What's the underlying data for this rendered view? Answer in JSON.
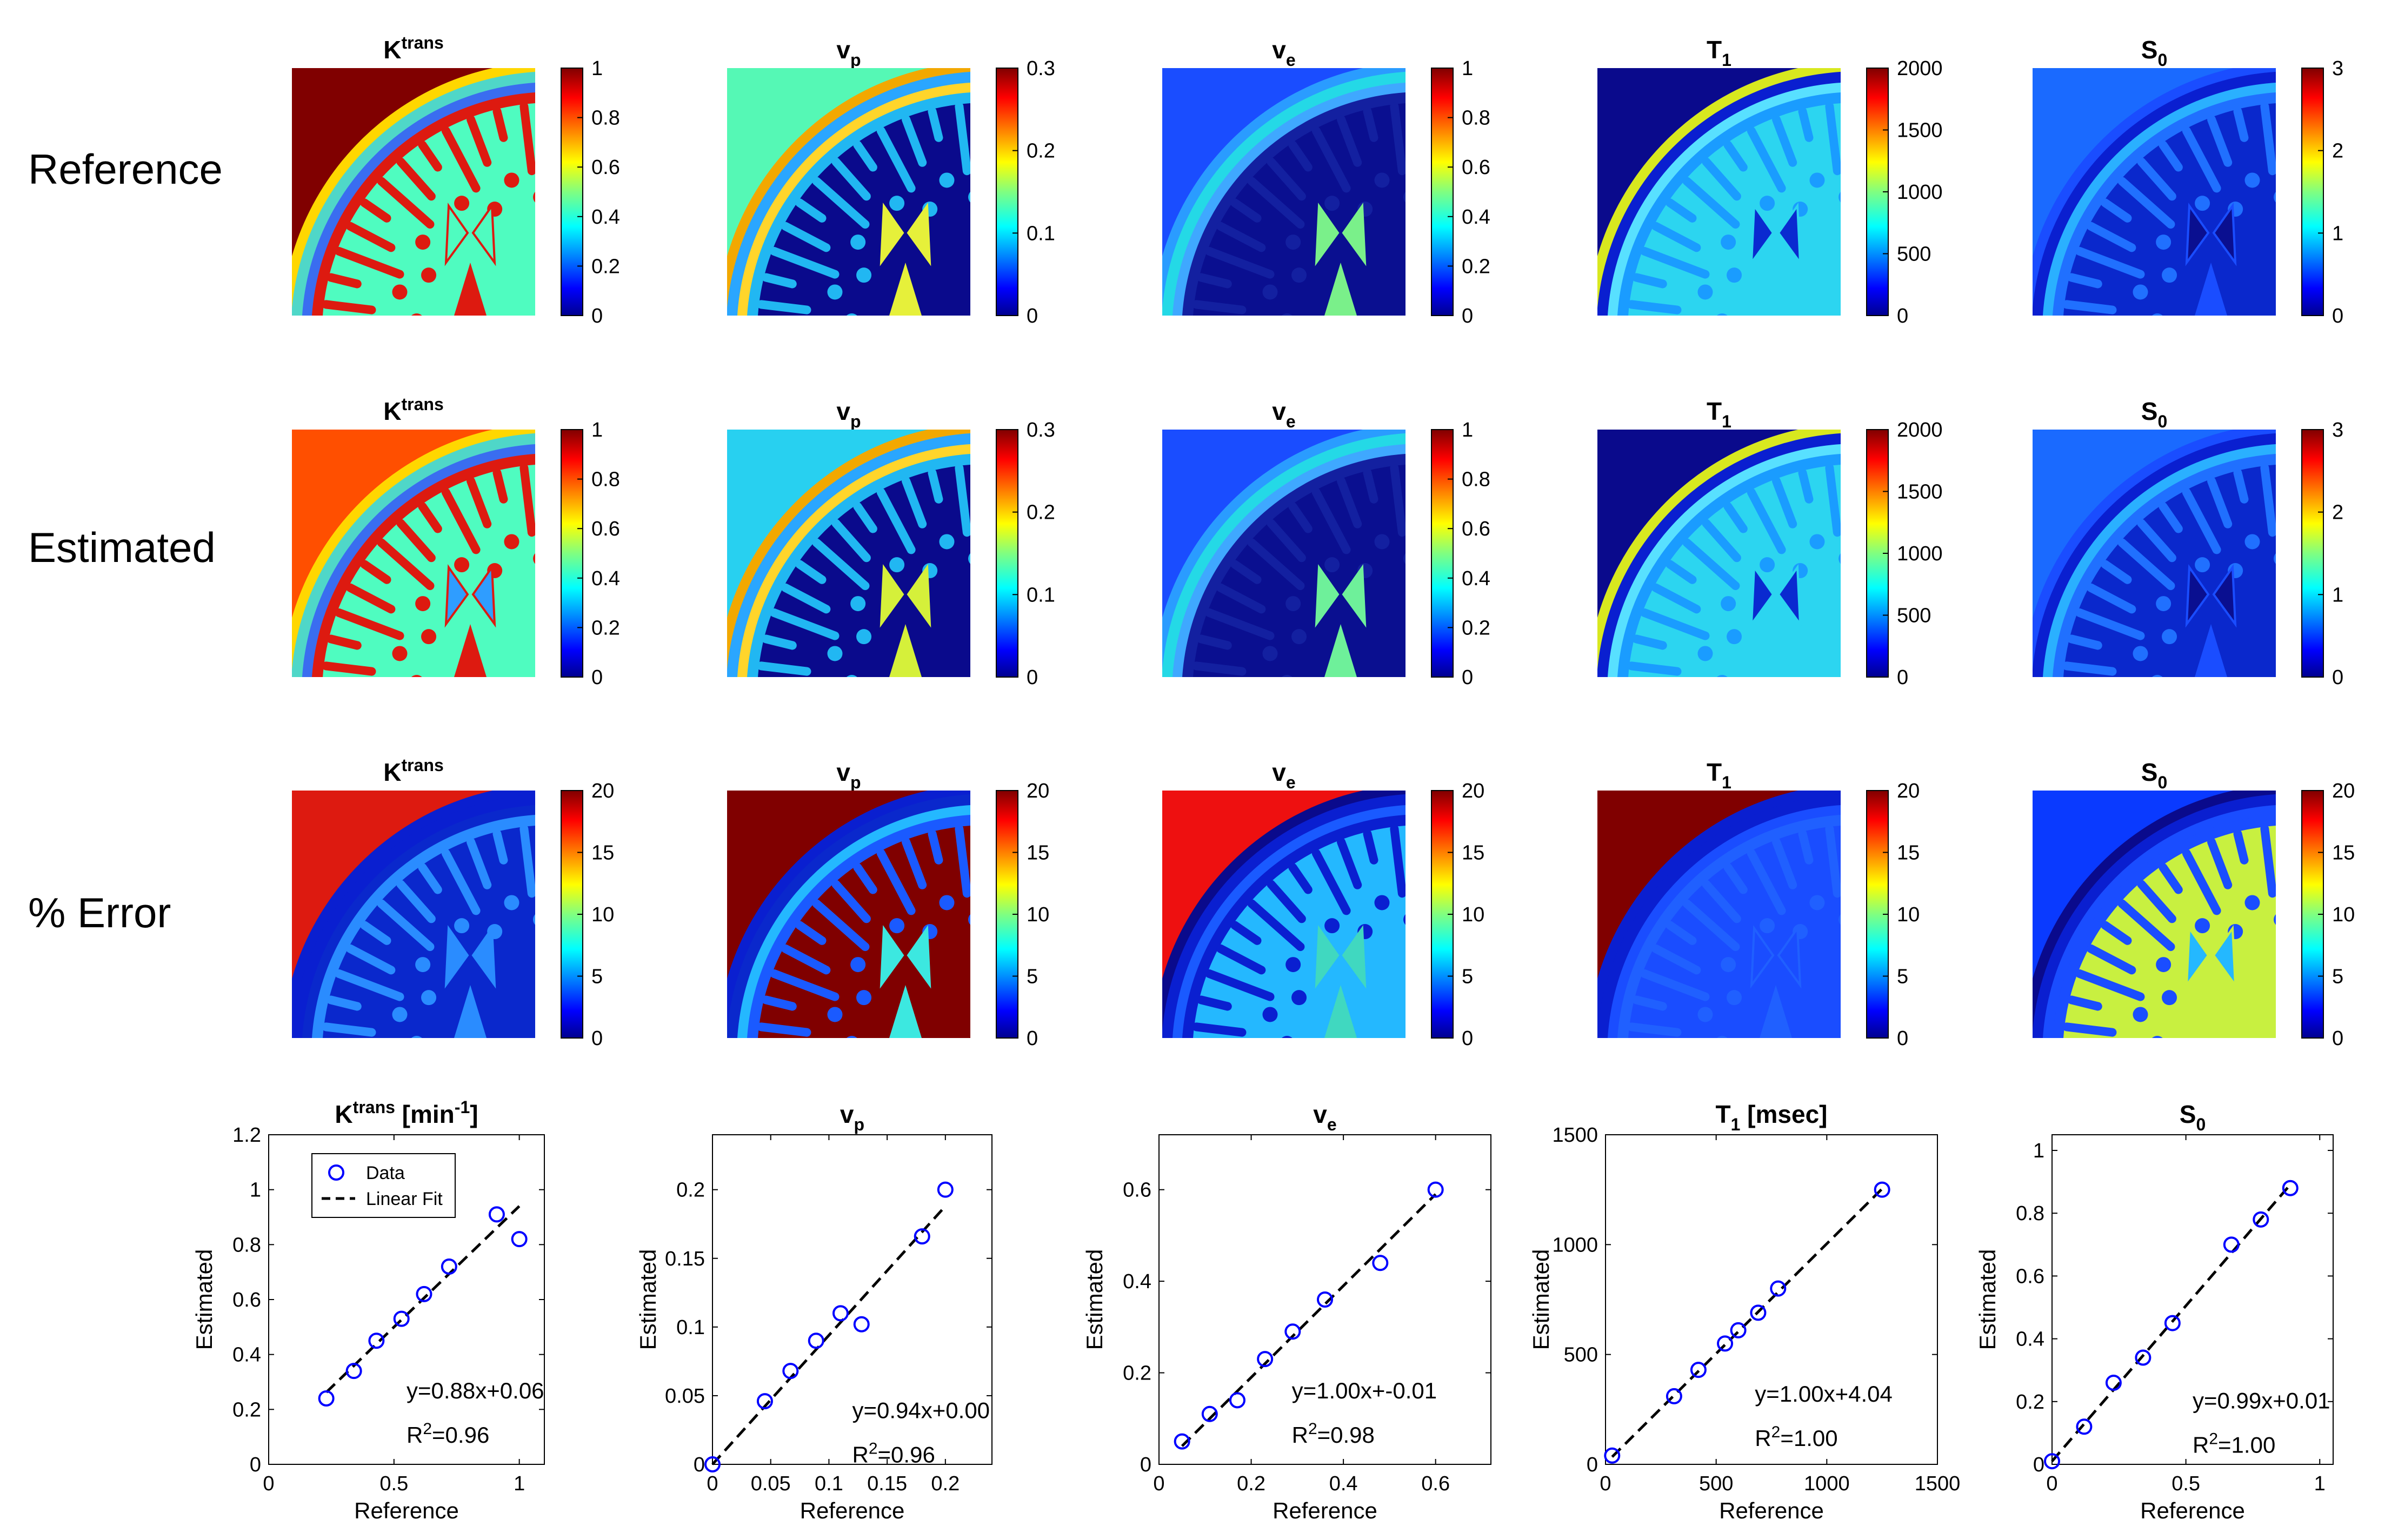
{
  "row_labels": [
    "Reference",
    "Estimated",
    "% Error"
  ],
  "columns": [
    {
      "key": "ktrans",
      "base": "K",
      "sup": "trans",
      "sub": ""
    },
    {
      "key": "vp",
      "base": "v",
      "sup": "",
      "sub": "p"
    },
    {
      "key": "ve",
      "base": "v",
      "sup": "",
      "sub": "e"
    },
    {
      "key": "t1",
      "base": "T",
      "sup": "",
      "sub": "1"
    },
    {
      "key": "s0",
      "base": "S",
      "sup": "",
      "sub": "0"
    }
  ],
  "colorbars": {
    "reference": [
      [
        "0",
        "0.2",
        "0.4",
        "0.6",
        "0.8",
        "1"
      ],
      [
        "0",
        "0.1",
        "0.2",
        "0.3"
      ],
      [
        "0",
        "0.2",
        "0.4",
        "0.6",
        "0.8",
        "1"
      ],
      [
        "0",
        "500",
        "1000",
        "1500",
        "2000"
      ],
      [
        "0",
        "1",
        "2",
        "3"
      ]
    ],
    "estimated": [
      [
        "0",
        "0.2",
        "0.4",
        "0.6",
        "0.8",
        "1"
      ],
      [
        "0",
        "0.1",
        "0.2",
        "0.3"
      ],
      [
        "0",
        "0.2",
        "0.4",
        "0.6",
        "0.8",
        "1"
      ],
      [
        "0",
        "500",
        "1000",
        "1500",
        "2000"
      ],
      [
        "0",
        "1",
        "2",
        "3"
      ]
    ],
    "error": [
      [
        "0",
        "5",
        "10",
        "15",
        "20"
      ],
      [
        "0",
        "5",
        "10",
        "15",
        "20"
      ],
      [
        "0",
        "5",
        "10",
        "15",
        "20"
      ],
      [
        "0",
        "5",
        "10",
        "15",
        "20"
      ],
      [
        "0",
        "5",
        "10",
        "15",
        "20"
      ]
    ]
  },
  "colors": {
    "marker": "#0000ff",
    "fit_line": "#000000",
    "jet_dark_red": "#800000",
    "jet_dark_blue": "#00008f"
  },
  "image_maps": {
    "reference": [
      {
        "bg": "#800000",
        "skull": "#ffd700",
        "skin": "#4fd7c8",
        "csf": "#3a6df0",
        "gm": "#dd1a10",
        "wm": "#4ffcc0",
        "vent": "#4ffcc0",
        "midline": "#dd1a10"
      },
      {
        "bg": "#55f8b5",
        "skull": "#f2a800",
        "skin": "#2aa6ff",
        "csf": "#ffd52b",
        "gm": "#21b7f2",
        "wm": "#0a0a8c",
        "vent": "#e6f03a",
        "midline": "#e6f03a"
      },
      {
        "bg": "#1a4dff",
        "skull": "#2a9cff",
        "skin": "#24d9e6",
        "csf": "#3fa8ff",
        "gm": "#1320a0",
        "wm": "#0a0f90",
        "vent": "#7af08a",
        "midline": "#7af08a"
      },
      {
        "bg": "#0a0a8c",
        "skull": "#d8e81f",
        "skin": "#0a1fd0",
        "csf": "#58e0ff",
        "gm": "#1a9cff",
        "wm": "#2cd5f0",
        "vent": "#0a2ad0",
        "midline": "#2cd5f0"
      },
      {
        "bg": "#1a6aff",
        "skull": "#1a4dff",
        "skin": "#0a1fd0",
        "csf": "#2ab0ff",
        "gm": "#2070ff",
        "wm": "#0a28cc",
        "vent": "#0a0f90",
        "midline": "#1a4dff"
      }
    ],
    "estimated": [
      {
        "bg": "#ff4f00",
        "skull": "#ffd700",
        "skin": "#4fd7c8",
        "csf": "#3a6df0",
        "gm": "#dd1a10",
        "wm": "#4ffcc0",
        "vent": "#2f9dff",
        "midline": "#dd1a10"
      },
      {
        "bg": "#28d0f0",
        "skull": "#f2a800",
        "skin": "#2aa6ff",
        "csf": "#ffd52b",
        "gm": "#21b7f2",
        "wm": "#0a0a8c",
        "vent": "#d5f03a",
        "midline": "#d5f03a"
      },
      {
        "bg": "#1a4dff",
        "skull": "#2a9cff",
        "skin": "#24d9e6",
        "csf": "#3fa8ff",
        "gm": "#1320a0",
        "wm": "#0a0f90",
        "vent": "#6ef09a",
        "midline": "#6ef09a"
      },
      {
        "bg": "#0a0a8c",
        "skull": "#d8e81f",
        "skin": "#0a1fd0",
        "csf": "#58e0ff",
        "gm": "#1a9cff",
        "wm": "#2cd5f0",
        "vent": "#0a2ad0",
        "midline": "#2cd5f0"
      },
      {
        "bg": "#1a6aff",
        "skull": "#1a4dff",
        "skin": "#0a1fd0",
        "csf": "#2ab0ff",
        "gm": "#2070ff",
        "wm": "#0a28cc",
        "vent": "#0a0f90",
        "midline": "#1a4dff"
      }
    ],
    "error": [
      {
        "bg": "#dd1a10",
        "skull": "#0a1fd0",
        "skin": "#0a1fd0",
        "csf": "#0a28cc",
        "gm": "#2a8cff",
        "wm": "#0a28cc",
        "vent": "#2a8cff",
        "midline": "#2a8cff"
      },
      {
        "bg": "#800000",
        "skull": "#0a1fd0",
        "skin": "#0a28cc",
        "csf": "#24b8ff",
        "gm": "#1a5aff",
        "wm": "#800000",
        "vent": "#3ce8e0",
        "midline": "#3ce8e0"
      },
      {
        "bg": "#ee1010",
        "skull": "#0a0a8c",
        "skin": "#0a1fd0",
        "csf": "#1a5aff",
        "gm": "#0a1fd0",
        "wm": "#24b8ff",
        "vent": "#40d8c0",
        "midline": "#40d8c0"
      },
      {
        "bg": "#800000",
        "skull": "#0a1fd0",
        "skin": "#0a1fd0",
        "csf": "#1a4dff",
        "gm": "#2060ff",
        "wm": "#1a4dff",
        "vent": "#1a4dff",
        "midline": "#2060ff"
      },
      {
        "bg": "#0a3aff",
        "skull": "#0a0a8c",
        "skin": "#0a1fd0",
        "csf": "#1a4dff",
        "gm": "#1a4dff",
        "wm": "#c8f040",
        "vent": "#24b8ff",
        "midline": "#c8f040"
      }
    ]
  },
  "chart_data": [
    {
      "type": "scatter",
      "title": "Ktrans [min-1]",
      "title_base": "K",
      "title_sup": "trans",
      "title_suffix": " [min",
      "title_suffix_sup": "-1",
      "title_end": "]",
      "xlabel": "Reference",
      "ylabel": "Estimated",
      "xlim": [
        0,
        1.1
      ],
      "ylim": [
        0,
        1.2
      ],
      "xticks": [
        0,
        0.5,
        1
      ],
      "xtick_labels": [
        "0",
        "0.5",
        "1"
      ],
      "yticks": [
        0,
        0.2,
        0.4,
        0.6,
        0.8,
        1,
        1.2
      ],
      "ytick_labels": [
        "0",
        "0.2",
        "0.4",
        "0.6",
        "0.8",
        "1",
        "1.2"
      ],
      "series": [
        {
          "name": "Data",
          "x": [
            0.23,
            0.34,
            0.43,
            0.53,
            0.62,
            0.72,
            0.91,
            1.0
          ],
          "y": [
            0.24,
            0.34,
            0.45,
            0.53,
            0.62,
            0.72,
            0.91,
            0.82
          ]
        },
        {
          "name": "Linear Fit",
          "slope": 0.88,
          "intercept": 0.06,
          "x_range": [
            0.23,
            1.0
          ]
        }
      ],
      "legend": {
        "entries": [
          "Data",
          "Linear Fit"
        ],
        "location": "top-left"
      },
      "annotations": [
        "y=0.88x+0.06",
        "R^2=0.96"
      ],
      "eq_text": "y=0.88x+0.06",
      "r2_value": "=0.96"
    },
    {
      "type": "scatter",
      "title": "vp",
      "title_base": "v",
      "title_sub": "p",
      "xlabel": "Reference",
      "ylabel": "Estimated",
      "xlim": [
        0,
        0.24
      ],
      "ylim": [
        0,
        0.24
      ],
      "xticks": [
        0,
        0.05,
        0.1,
        0.15,
        0.2
      ],
      "xtick_labels": [
        "0",
        "0.05",
        "0.1",
        "0.15",
        "0.2"
      ],
      "yticks": [
        0,
        0.05,
        0.1,
        0.15,
        0.2
      ],
      "ytick_labels": [
        "0",
        "0.05",
        "0.1",
        "0.15",
        "0.2"
      ],
      "series": [
        {
          "name": "Data",
          "x": [
            0.0,
            0.045,
            0.067,
            0.089,
            0.11,
            0.128,
            0.18,
            0.2
          ],
          "y": [
            0.0,
            0.046,
            0.068,
            0.09,
            0.11,
            0.102,
            0.166,
            0.2
          ]
        },
        {
          "name": "Linear Fit",
          "slope": 0.94,
          "intercept": 0.0,
          "x_range": [
            0.0,
            0.2
          ]
        }
      ],
      "annotations": [
        "y=0.94x+0.00",
        "R^2=0.96"
      ],
      "eq_text": "y=0.94x+0.00",
      "r2_value": "=0.96"
    },
    {
      "type": "scatter",
      "title": "ve",
      "title_base": "v",
      "title_sub": "e",
      "xlabel": "Reference",
      "ylabel": "Estimated",
      "xlim": [
        0,
        0.72
      ],
      "ylim": [
        0,
        0.72
      ],
      "xticks": [
        0,
        0.2,
        0.4,
        0.6
      ],
      "xtick_labels": [
        "0",
        "0.2",
        "0.4",
        "0.6"
      ],
      "yticks": [
        0,
        0.2,
        0.4,
        0.6
      ],
      "ytick_labels": [
        "0",
        "0.2",
        "0.4",
        "0.6"
      ],
      "series": [
        {
          "name": "Data",
          "x": [
            0.05,
            0.11,
            0.17,
            0.23,
            0.29,
            0.36,
            0.48,
            0.6
          ],
          "y": [
            0.05,
            0.11,
            0.14,
            0.23,
            0.29,
            0.36,
            0.44,
            0.6
          ]
        },
        {
          "name": "Linear Fit",
          "slope": 1.0,
          "intercept": -0.01,
          "x_range": [
            0.05,
            0.6
          ]
        }
      ],
      "annotations": [
        "y=1.00x+-0.01",
        "R^2=0.98"
      ],
      "eq_text": "y=1.00x+-0.01",
      "r2_value": "=0.98"
    },
    {
      "type": "scatter",
      "title": "T1 [msec]",
      "title_base": "T",
      "title_sub": "1",
      "title_suffix": " [msec]",
      "xlabel": "Reference",
      "ylabel": "Estimated",
      "xlim": [
        0,
        1500
      ],
      "ylim": [
        0,
        1500
      ],
      "xticks": [
        0,
        500,
        1000,
        1500
      ],
      "xtick_labels": [
        "0",
        "500",
        "1000",
        "1500"
      ],
      "yticks": [
        0,
        500,
        1000,
        1500
      ],
      "ytick_labels": [
        "0",
        "500",
        "1000",
        "1500"
      ],
      "series": [
        {
          "name": "Data",
          "x": [
            30,
            310,
            420,
            540,
            600,
            690,
            780,
            1250
          ],
          "y": [
            40,
            310,
            430,
            550,
            610,
            690,
            800,
            1250
          ]
        },
        {
          "name": "Linear Fit",
          "slope": 1.0,
          "intercept": 4.04,
          "x_range": [
            30,
            1250
          ]
        }
      ],
      "annotations": [
        "y=1.00x+4.04",
        "R^2=1.00"
      ],
      "eq_text": "y=1.00x+4.04",
      "r2_value": "=1.00"
    },
    {
      "type": "scatter",
      "title": "S0",
      "title_base": "S",
      "title_sub": "0",
      "xlabel": "Reference",
      "ylabel": "Estimated",
      "xlim": [
        0,
        1.05
      ],
      "ylim": [
        0,
        1.05
      ],
      "xticks": [
        0,
        0.5,
        1
      ],
      "xtick_labels": [
        "0",
        "0.5",
        "1"
      ],
      "yticks": [
        0,
        0.2,
        0.4,
        0.6,
        0.8,
        1
      ],
      "ytick_labels": [
        "0",
        "0.2",
        "0.4",
        "0.6",
        "0.8",
        "1"
      ],
      "series": [
        {
          "name": "Data",
          "x": [
            0.0,
            0.12,
            0.23,
            0.34,
            0.45,
            0.67,
            0.78,
            0.89
          ],
          "y": [
            0.01,
            0.12,
            0.26,
            0.34,
            0.45,
            0.7,
            0.78,
            0.88
          ]
        },
        {
          "name": "Linear Fit",
          "slope": 0.99,
          "intercept": 0.01,
          "x_range": [
            0.0,
            0.89
          ]
        }
      ],
      "annotations": [
        "y=0.99x+0.01",
        "R^2=1.00"
      ],
      "eq_text": "y=0.99x+0.01",
      "r2_value": "=1.00"
    }
  ]
}
